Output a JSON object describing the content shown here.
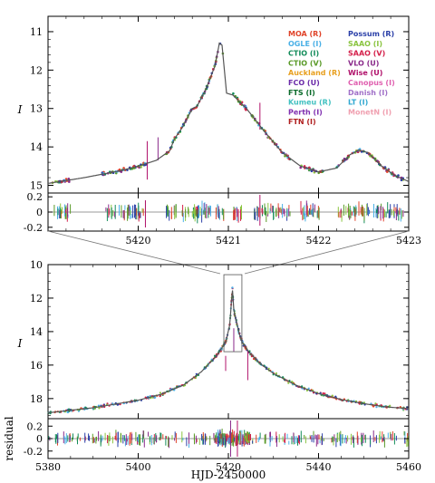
{
  "chart_data": [
    {
      "type": "line",
      "panel": "top-zoom",
      "ylabel": "I",
      "xlim": [
        5419.0,
        5423.0
      ],
      "ylim": [
        15.2,
        10.6
      ],
      "yinvert": true,
      "xticks": [
        "5420",
        "5421",
        "5422",
        "5423"
      ],
      "yticks": [
        "11",
        "12",
        "13",
        "14",
        "15"
      ],
      "model_x": [
        5419.0,
        5419.4,
        5419.8,
        5420.0,
        5420.2,
        5420.35,
        5420.4,
        5420.5,
        5420.6,
        5420.65,
        5420.75,
        5420.85,
        5420.9,
        5420.93,
        5420.98,
        5421.05,
        5421.2,
        5421.4,
        5421.6,
        5421.8,
        5422.0,
        5422.2,
        5422.35,
        5422.45,
        5422.55,
        5422.7,
        5422.85,
        5423.0
      ],
      "model_y": [
        14.95,
        14.8,
        14.62,
        14.5,
        14.35,
        14.1,
        13.8,
        13.45,
        13.0,
        12.95,
        12.5,
        11.9,
        11.3,
        11.35,
        12.6,
        12.65,
        13.0,
        13.6,
        14.15,
        14.5,
        14.65,
        14.55,
        14.2,
        14.08,
        14.15,
        14.5,
        14.75,
        14.9
      ],
      "residual": {
        "ylim": [
          -0.25,
          0.25
        ],
        "yticks": [
          "0.2",
          "0",
          "-0.2"
        ]
      },
      "legend": {
        "placement": "top-right",
        "entries": [
          {
            "label": "MOA (R)",
            "color": "#e0442a"
          },
          {
            "label": "Possum (R)",
            "color": "#2a3fa8"
          },
          {
            "label": "OGLE (I)",
            "color": "#4ab0e6"
          },
          {
            "label": "SAAO (I)",
            "color": "#8ac440"
          },
          {
            "label": "CTIO (I)",
            "color": "#138c5a"
          },
          {
            "label": "SAAO (V)",
            "color": "#d4204a"
          },
          {
            "label": "CTIO (V)",
            "color": "#5a9a28"
          },
          {
            "label": "VLO (U)",
            "color": "#8a2a8a"
          },
          {
            "label": "Auckland (R)",
            "color": "#e8a020"
          },
          {
            "label": "Wise (U)",
            "color": "#b0106a"
          },
          {
            "label": "FCO (U)",
            "color": "#6a2aa8"
          },
          {
            "label": "Canopus (I)",
            "color": "#e060b0"
          },
          {
            "label": "FTS (I)",
            "color": "#0a6a2a"
          },
          {
            "label": "Danish (I)",
            "color": "#a070c8"
          },
          {
            "label": "Kumeu (R)",
            "color": "#40c0c0"
          },
          {
            "label": "LT (I)",
            "color": "#30a8d0"
          },
          {
            "label": "Perth (I)",
            "color": "#8030b0"
          },
          {
            "label": "MonetN (I)",
            "color": "#f0a0b0"
          },
          {
            "label": "FTN (I)",
            "color": "#b02020"
          }
        ]
      }
    },
    {
      "type": "line",
      "panel": "bottom-full",
      "ylabel": "I",
      "xlabel": "HJD-2450000",
      "xlim": [
        5380,
        5460
      ],
      "ylim": [
        19.2,
        10.0
      ],
      "yinvert": true,
      "xticks": [
        "5380",
        "5400",
        "5420",
        "5440",
        "5460"
      ],
      "yticks": [
        "10",
        "12",
        "14",
        "16",
        "18"
      ],
      "model_x": [
        5380,
        5390,
        5400,
        5405,
        5410,
        5414,
        5417,
        5418.5,
        5419.5,
        5420.3,
        5420.9,
        5421.2,
        5421.6,
        5422.4,
        5423.0,
        5424.5,
        5427,
        5430,
        5435,
        5440,
        5445,
        5450,
        5455,
        5460
      ],
      "model_y": [
        18.85,
        18.55,
        18.1,
        17.75,
        17.2,
        16.4,
        15.55,
        15.0,
        14.55,
        13.6,
        11.4,
        12.7,
        13.2,
        14.1,
        14.6,
        15.2,
        15.9,
        16.5,
        17.2,
        17.7,
        18.05,
        18.3,
        18.5,
        18.6
      ],
      "zoom_box": {
        "x": [
          5419.0,
          5423.0
        ],
        "y": [
          10.6,
          15.2
        ]
      },
      "residual": {
        "ylabel": "residual",
        "ylim": [
          -0.32,
          0.32
        ],
        "yticks": [
          "0.2",
          "0",
          "-0.2"
        ]
      }
    }
  ],
  "colors": {
    "model": "#555555",
    "axes": "#000000",
    "zero_line": "#777777"
  }
}
